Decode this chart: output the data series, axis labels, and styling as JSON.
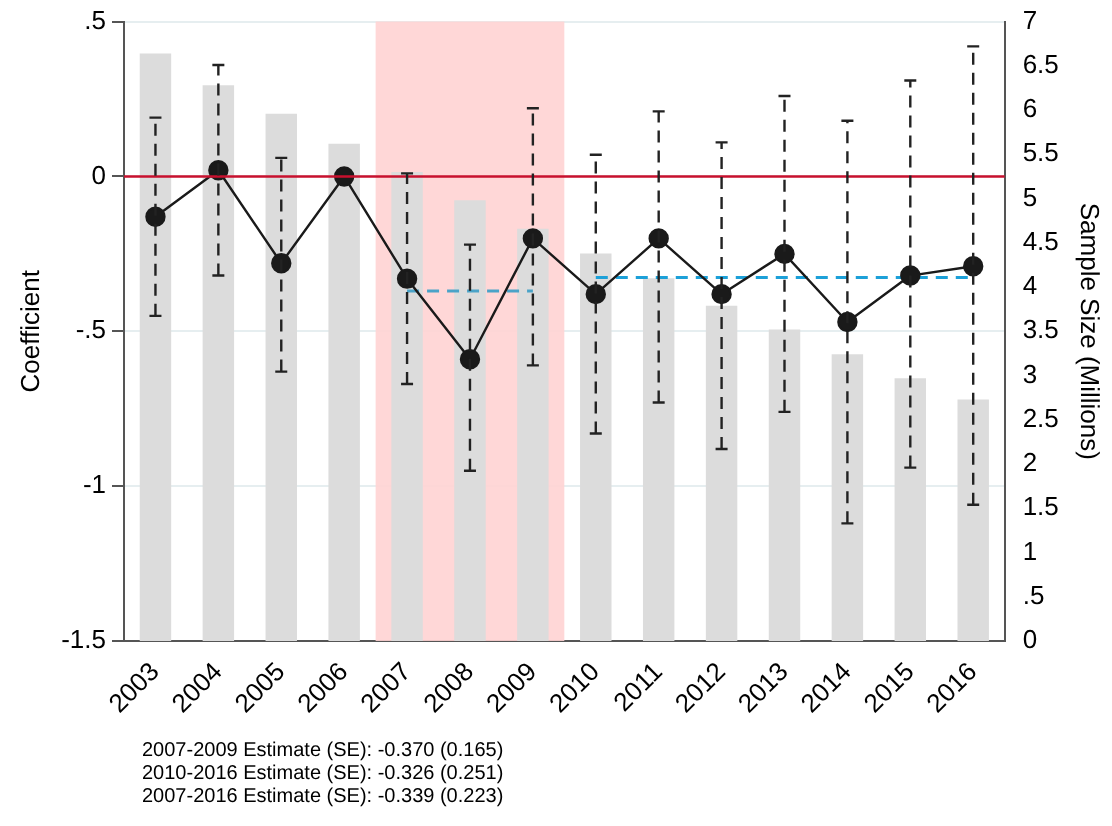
{
  "chart_data": {
    "type": "bar",
    "ylabel": "Coefficient",
    "y2label": "Sample Size (Millions)",
    "categories": [
      "2003",
      "2004",
      "2005",
      "2006",
      "2007",
      "2008",
      "2009",
      "2010",
      "2011",
      "2012",
      "2013",
      "2014",
      "2015",
      "2016"
    ],
    "series": [
      {
        "axis": "y2",
        "color": "#dcdcdc",
        "values": [
          6.64,
          6.28,
          5.96,
          5.62,
          5.3,
          4.98,
          4.66,
          4.38,
          4.1,
          3.79,
          3.52,
          3.24,
          2.97,
          2.73
        ]
      },
      {
        "type": "line",
        "color": "#1a1a1a",
        "marker": "circle",
        "line_style": "solid",
        "values": [
          -0.13,
          0.02,
          -0.28,
          0,
          -0.33,
          -0.59,
          -0.2,
          -0.38,
          -0.2,
          -0.38,
          -0.25,
          -0.47,
          -0.32,
          -0.29
        ],
        "errors": [
          [
            -0.45,
            0.19
          ],
          [
            -0.32,
            0.36
          ],
          [
            -0.63,
            0.06
          ],
          null,
          [
            -0.67,
            0.01
          ],
          [
            -0.95,
            -0.22
          ],
          [
            -0.61,
            0.22
          ],
          [
            -0.83,
            0.07
          ],
          [
            -0.73,
            0.21
          ],
          [
            -0.88,
            0.11
          ],
          [
            -0.76,
            0.26
          ],
          [
            -1.12,
            0.18
          ],
          [
            -0.94,
            0.31
          ],
          [
            -1.06,
            0.42
          ]
        ]
      },
      {
        "type": "line",
        "color": "#4aa3c8",
        "marker": "none",
        "line_style": "dashed",
        "values": [
          null,
          null,
          null,
          null,
          -0.37,
          -0.37,
          -0.37,
          null,
          null,
          null,
          null,
          null,
          null,
          null
        ]
      },
      {
        "type": "line",
        "color": "#1ca0d8",
        "marker": "none",
        "line_style": "dashed",
        "values": [
          null,
          null,
          null,
          null,
          null,
          null,
          null,
          -0.326,
          -0.326,
          -0.326,
          -0.326,
          -0.326,
          -0.326,
          -0.326
        ]
      }
    ],
    "ylim": [
      -1.5,
      0.5
    ],
    "yticks": [
      {
        "value": -1.5,
        "label": "-1.5"
      },
      {
        "value": -1,
        "label": "-1"
      },
      {
        "value": -0.5,
        "label": "-.5"
      },
      0,
      {
        "value": 0.5,
        "label": ".5"
      }
    ],
    "y2lim": [
      0,
      7
    ],
    "y2ticks": [
      0,
      {
        "value": 0.5,
        "label": ".5"
      },
      1,
      1.5,
      2,
      2.5,
      3,
      3.5,
      4,
      4.5,
      5,
      5.5,
      6,
      6.5,
      7
    ],
    "ref_lines": [
      {
        "axis": "y",
        "value": 0,
        "color": "#c8102e"
      }
    ],
    "bands": [
      {
        "axis": "x",
        "from": "2007",
        "to": "2009",
        "color": "#ffd3d3"
      }
    ],
    "grid": "y",
    "legend": false,
    "annotations": [
      "2007-2009 Estimate (SE): -0.370 (0.165)",
      "2010-2016 Estimate (SE): -0.326 (0.251)",
      "2007-2016 Estimate (SE): -0.339 (0.223)"
    ]
  }
}
